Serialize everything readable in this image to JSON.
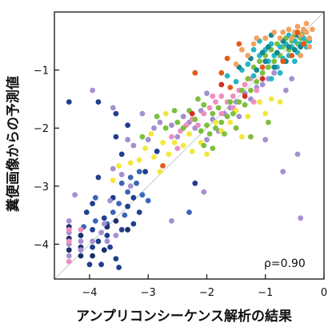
{
  "chart_data": {
    "type": "scatter",
    "title": "",
    "xlabel": "アンプリコンシーケンス解析の結果",
    "ylabel": "糞便画像からの予測値",
    "xlim": [
      -4.6,
      0.0
    ],
    "ylim": [
      -4.6,
      0.0
    ],
    "xticks": [
      -4,
      -3,
      -2,
      -1,
      0
    ],
    "yticks": [
      -4,
      -3,
      -2,
      -1
    ],
    "grid": false,
    "legend": "none",
    "reference_line": "y = x",
    "annotation": "ρ=0.90",
    "series": [
      {
        "color": "#1f3f8f",
        "points": [
          [
            -4.35,
            -1.55
          ],
          [
            -3.85,
            -1.55
          ],
          [
            -3.55,
            -1.75
          ],
          [
            -3.55,
            -2.15
          ],
          [
            -3.35,
            -1.95
          ],
          [
            -3.45,
            -2.45
          ],
          [
            -3.85,
            -2.85
          ],
          [
            -3.95,
            -3.3
          ],
          [
            -4.05,
            -3.45
          ],
          [
            -3.75,
            -3.55
          ],
          [
            -3.95,
            -3.75
          ],
          [
            -3.85,
            -3.95
          ],
          [
            -3.65,
            -4.05
          ],
          [
            -3.55,
            -4.25
          ],
          [
            -3.8,
            -4.35
          ],
          [
            -3.35,
            -3.35
          ],
          [
            -3.25,
            -3.2
          ],
          [
            -3.15,
            -3.45
          ],
          [
            -3.6,
            -3.2
          ],
          [
            -3.7,
            -3.85
          ],
          [
            -3.95,
            -4.05
          ],
          [
            -3.45,
            -3.75
          ],
          [
            -3.25,
            -3.65
          ],
          [
            -2.85,
            -2.4
          ],
          [
            -2.2,
            -2.95
          ],
          [
            -3.05,
            -2.75
          ],
          [
            -3.5,
            -4.4
          ],
          [
            -4.0,
            -4.35
          ]
        ]
      },
      {
        "color": "#3b66b5",
        "points": [
          [
            -3.35,
            -3.1
          ],
          [
            -3.2,
            -2.95
          ],
          [
            -3.1,
            -3.15
          ],
          [
            -3.0,
            -3.25
          ],
          [
            -3.4,
            -3.5
          ],
          [
            -3.6,
            -3.45
          ],
          [
            -3.5,
            -3.3
          ],
          [
            -3.7,
            -3.65
          ],
          [
            -3.9,
            -3.6
          ],
          [
            -3.3,
            -2.85
          ],
          [
            -3.15,
            -2.75
          ],
          [
            -3.45,
            -2.95
          ],
          [
            -4.1,
            -3.7
          ],
          [
            -3.9,
            -3.2
          ],
          [
            -2.3,
            -3.45
          ]
        ]
      },
      {
        "color": "#1a2f6b",
        "points": [
          [
            -4.35,
            -3.7
          ],
          [
            -4.35,
            -3.9
          ],
          [
            -4.35,
            -4.1
          ],
          [
            -4.15,
            -3.85
          ],
          [
            -4.15,
            -4.05
          ],
          [
            -4.15,
            -4.2
          ],
          [
            -3.95,
            -4.2
          ],
          [
            -3.75,
            -4.1
          ],
          [
            -3.7,
            -3.7
          ],
          [
            -3.55,
            -3.6
          ],
          [
            -3.35,
            -3.75
          ]
        ]
      },
      {
        "color": "#a58fcf",
        "points": [
          [
            -3.95,
            -1.35
          ],
          [
            -3.6,
            -1.65
          ],
          [
            -3.35,
            -2.2
          ],
          [
            -3.1,
            -1.75
          ],
          [
            -3.6,
            -2.7
          ],
          [
            -4.35,
            -3.6
          ],
          [
            -4.35,
            -3.8
          ],
          [
            -4.35,
            -4.0
          ],
          [
            -4.35,
            -4.2
          ],
          [
            -4.15,
            -3.95
          ],
          [
            -4.15,
            -4.1
          ],
          [
            -3.95,
            -3.95
          ],
          [
            -3.8,
            -3.8
          ],
          [
            -3.7,
            -3.95
          ],
          [
            -3.45,
            -2.8
          ],
          [
            -3.3,
            -3.0
          ],
          [
            -3.25,
            -2.3
          ],
          [
            -3.0,
            -2.2
          ],
          [
            -2.9,
            -2.0
          ],
          [
            -2.8,
            -1.9
          ],
          [
            -2.6,
            -1.95
          ],
          [
            -2.5,
            -2.15
          ],
          [
            -2.4,
            -1.8
          ],
          [
            -2.3,
            -1.9
          ],
          [
            -2.2,
            -2.0
          ],
          [
            -2.1,
            -1.7
          ],
          [
            -2.0,
            -2.2
          ],
          [
            -1.9,
            -1.85
          ],
          [
            -1.8,
            -2.05
          ],
          [
            -1.7,
            -1.75
          ],
          [
            -1.6,
            -1.65
          ],
          [
            -1.5,
            -1.55
          ],
          [
            -1.45,
            -1.8
          ],
          [
            -1.35,
            -1.4
          ],
          [
            -1.25,
            -1.5
          ],
          [
            -1.15,
            -1.3
          ],
          [
            -1.05,
            -1.25
          ],
          [
            -0.95,
            -1.15
          ],
          [
            -0.85,
            -1.05
          ],
          [
            -0.65,
            -1.35
          ],
          [
            -0.55,
            -1.15
          ],
          [
            -0.45,
            -2.45
          ],
          [
            -0.4,
            -3.55
          ],
          [
            -0.7,
            -2.75
          ],
          [
            -1.0,
            -2.2
          ],
          [
            -2.05,
            -3.1
          ],
          [
            -2.6,
            -3.6
          ],
          [
            -2.0,
            -1.4
          ],
          [
            -3.75,
            -3.65
          ],
          [
            -4.25,
            -3.15
          ],
          [
            -3.55,
            -3.85
          ],
          [
            -3.65,
            -3.25
          ]
        ]
      },
      {
        "color": "#ee8fc0",
        "points": [
          [
            -4.35,
            -3.75
          ],
          [
            -4.35,
            -3.95
          ],
          [
            -4.35,
            -4.3
          ],
          [
            -4.15,
            -3.75
          ],
          [
            -2.6,
            -2.15
          ],
          [
            -2.45,
            -2.05
          ],
          [
            -2.35,
            -1.95
          ],
          [
            -2.25,
            -1.85
          ],
          [
            -2.15,
            -1.95
          ],
          [
            -2.05,
            -1.75
          ],
          [
            -1.95,
            -1.65
          ],
          [
            -1.85,
            -1.55
          ],
          [
            -1.75,
            -1.45
          ],
          [
            -1.65,
            -1.55
          ],
          [
            -1.55,
            -1.45
          ],
          [
            -1.45,
            -1.35
          ],
          [
            -1.35,
            -1.25
          ],
          [
            -1.25,
            -1.15
          ],
          [
            -1.15,
            -1.35
          ],
          [
            -1.55,
            -1.65
          ],
          [
            -1.75,
            -1.75
          ],
          [
            -1.9,
            -1.45
          ],
          [
            -1.2,
            -1.55
          ],
          [
            -2.5,
            -2.35
          ]
        ]
      },
      {
        "color": "#f2e83c",
        "points": [
          [
            -3.15,
            -2.55
          ],
          [
            -3.6,
            -2.9
          ],
          [
            -3.5,
            -2.65
          ],
          [
            -3.05,
            -2.35
          ],
          [
            -2.9,
            -2.5
          ],
          [
            -2.95,
            -2.1
          ],
          [
            -2.75,
            -2.25
          ],
          [
            -2.65,
            -2.45
          ],
          [
            -2.7,
            -1.75
          ],
          [
            -2.55,
            -2.25
          ],
          [
            -2.4,
            -2.3
          ],
          [
            -2.3,
            -2.1
          ],
          [
            -2.25,
            -2.4
          ],
          [
            -2.1,
            -2.25
          ],
          [
            -2.0,
            -2.45
          ],
          [
            -1.85,
            -1.9
          ],
          [
            -1.75,
            -2.05
          ],
          [
            -1.6,
            -1.9
          ],
          [
            -1.5,
            -1.7
          ],
          [
            -1.4,
            -2.15
          ],
          [
            -1.3,
            -1.8
          ],
          [
            -1.1,
            -1.55
          ],
          [
            -1.0,
            -1.75
          ],
          [
            -0.9,
            -1.5
          ],
          [
            -3.3,
            -2.6
          ],
          [
            -0.75,
            -1.55
          ],
          [
            -2.8,
            -2.75
          ]
        ]
      },
      {
        "color": "#7cbf3f",
        "points": [
          [
            -3.1,
            -2.15
          ],
          [
            -2.85,
            -1.8
          ],
          [
            -2.7,
            -2.0
          ],
          [
            -2.55,
            -1.7
          ],
          [
            -2.4,
            -2.0
          ],
          [
            -2.3,
            -1.7
          ],
          [
            -2.2,
            -1.85
          ],
          [
            -2.1,
            -2.05
          ],
          [
            -2.05,
            -1.6
          ],
          [
            -2.0,
            -1.95
          ],
          [
            -1.95,
            -2.1
          ],
          [
            -1.9,
            -1.75
          ],
          [
            -1.85,
            -2.0
          ],
          [
            -1.8,
            -1.65
          ],
          [
            -1.75,
            -1.9
          ],
          [
            -1.7,
            -2.1
          ],
          [
            -1.65,
            -1.8
          ],
          [
            -1.6,
            -1.55
          ],
          [
            -1.55,
            -1.75
          ],
          [
            -1.5,
            -2.0
          ],
          [
            -1.45,
            -1.55
          ],
          [
            -1.4,
            -1.35
          ],
          [
            -1.35,
            -1.6
          ],
          [
            -1.3,
            -1.15
          ],
          [
            -1.25,
            -1.35
          ],
          [
            -1.2,
            -0.95
          ],
          [
            -1.15,
            -1.2
          ],
          [
            -1.1,
            -0.85
          ],
          [
            -1.05,
            -1.05
          ],
          [
            -1.0,
            -0.75
          ],
          [
            -0.95,
            -0.95
          ],
          [
            -0.9,
            -0.65
          ],
          [
            -0.85,
            -0.85
          ],
          [
            -0.8,
            -0.55
          ],
          [
            -0.75,
            -0.75
          ],
          [
            -0.7,
            -0.6
          ],
          [
            -0.65,
            -0.45
          ],
          [
            -0.6,
            -0.65
          ],
          [
            -0.55,
            -0.5
          ],
          [
            -0.5,
            -0.4
          ],
          [
            -0.45,
            -0.55
          ],
          [
            -0.4,
            -0.45
          ],
          [
            -0.35,
            -0.35
          ],
          [
            -0.3,
            -0.5
          ],
          [
            -2.05,
            -2.3
          ],
          [
            -1.9,
            -2.35
          ],
          [
            -2.15,
            -1.5
          ],
          [
            -1.25,
            -2.15
          ],
          [
            -0.95,
            -1.9
          ],
          [
            -2.5,
            -1.9
          ]
        ]
      },
      {
        "color": "#26b5c6",
        "points": [
          [
            -1.65,
            -1.1
          ],
          [
            -1.5,
            -1.2
          ],
          [
            -1.4,
            -1.0
          ],
          [
            -1.3,
            -0.9
          ],
          [
            -1.2,
            -1.1
          ],
          [
            -1.1,
            -0.75
          ],
          [
            -1.05,
            -0.95
          ],
          [
            -1.0,
            -0.65
          ],
          [
            -0.95,
            -0.85
          ],
          [
            -0.9,
            -0.55
          ],
          [
            -0.85,
            -0.75
          ],
          [
            -0.8,
            -0.95
          ],
          [
            -0.75,
            -0.6
          ],
          [
            -0.7,
            -0.8
          ],
          [
            -0.65,
            -0.55
          ],
          [
            -0.6,
            -0.75
          ],
          [
            -0.55,
            -0.6
          ],
          [
            -0.5,
            -0.5
          ],
          [
            -0.45,
            -0.7
          ],
          [
            -0.4,
            -0.55
          ],
          [
            -0.35,
            -0.45
          ],
          [
            -0.3,
            -0.6
          ],
          [
            -0.25,
            -0.5
          ],
          [
            -1.2,
            -0.65
          ],
          [
            -0.9,
            -1.15
          ],
          [
            -1.1,
            -0.5
          ],
          [
            -0.6,
            -0.4
          ],
          [
            -0.75,
            -1.05
          ],
          [
            -0.5,
            -0.85
          ]
        ]
      },
      {
        "color": "#15878f",
        "points": [
          [
            -1.45,
            -0.95
          ],
          [
            -1.25,
            -0.8
          ],
          [
            -1.15,
            -1.0
          ],
          [
            -1.0,
            -0.85
          ],
          [
            -0.95,
            -0.6
          ],
          [
            -0.85,
            -0.95
          ],
          [
            -0.8,
            -0.7
          ],
          [
            -0.7,
            -0.5
          ],
          [
            -0.65,
            -0.85
          ],
          [
            -0.6,
            -0.6
          ],
          [
            -0.55,
            -0.45
          ],
          [
            -0.5,
            -0.65
          ],
          [
            -0.45,
            -0.4
          ],
          [
            -0.4,
            -0.6
          ],
          [
            -0.9,
            -0.4
          ],
          [
            -1.05,
            -0.7
          ]
        ]
      },
      {
        "color": "#f2a261",
        "points": [
          [
            -1.5,
            -0.9
          ],
          [
            -1.3,
            -0.75
          ],
          [
            -1.2,
            -0.55
          ],
          [
            -1.0,
            -0.45
          ],
          [
            -0.85,
            -0.35
          ],
          [
            -0.7,
            -0.35
          ],
          [
            -0.6,
            -0.3
          ],
          [
            -0.5,
            -0.35
          ],
          [
            -0.45,
            -0.25
          ],
          [
            -0.4,
            -0.4
          ],
          [
            -0.35,
            -0.3
          ],
          [
            -0.3,
            -0.35
          ],
          [
            -0.25,
            -0.45
          ],
          [
            -0.2,
            -0.3
          ],
          [
            -0.3,
            -0.2
          ],
          [
            -0.55,
            -0.45
          ],
          [
            -0.75,
            -0.45
          ],
          [
            -1.15,
            -0.45
          ],
          [
            -1.4,
            -0.65
          ],
          [
            -0.25,
            -0.6
          ],
          [
            -0.4,
            -0.75
          ]
        ]
      },
      {
        "color": "#e35a1a",
        "points": [
          [
            -2.2,
            -1.05
          ],
          [
            -1.6,
            -1.3
          ],
          [
            -1.05,
            -0.95
          ],
          [
            -0.55,
            -0.75
          ],
          [
            -0.45,
            -0.35
          ],
          [
            -0.35,
            -0.55
          ],
          [
            -1.65,
            -0.8
          ],
          [
            -1.45,
            -0.55
          ],
          [
            -2.75,
            -2.65
          ],
          [
            -1.75,
            -1.05
          ],
          [
            -0.7,
            -0.85
          ]
        ]
      },
      {
        "color": "#d32d24",
        "points": [
          [
            -2.25,
            -1.75
          ],
          [
            -1.35,
            -1.45
          ],
          [
            -1.05,
            -1.15
          ],
          [
            -1.75,
            -1.25
          ]
        ]
      }
    ]
  }
}
